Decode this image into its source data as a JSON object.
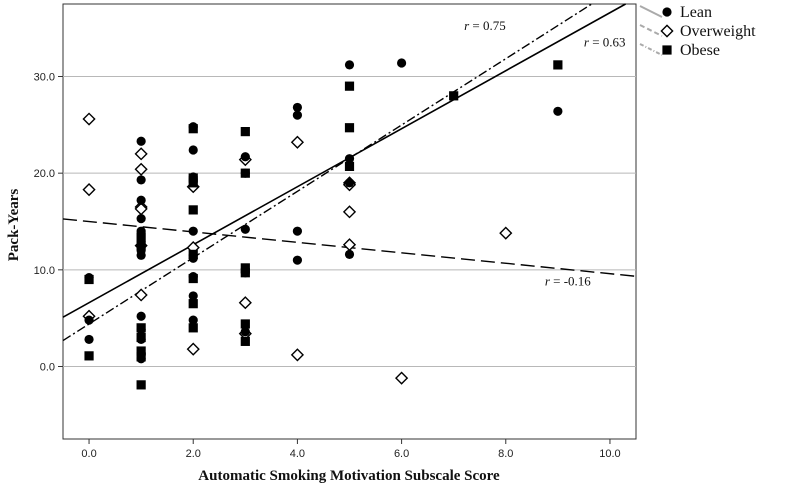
{
  "chart_data": {
    "type": "scatter",
    "xlabel": "Automatic Smoking Motivation Subscale Score",
    "ylabel": "Pack-Years",
    "xlim": [
      -0.5,
      10.5
    ],
    "ylim": [
      -7.5,
      37.5
    ],
    "x_ticks": [
      0,
      2,
      4,
      6,
      8,
      10
    ],
    "x_tick_labels": [
      "0.0",
      "2.0",
      "4.0",
      "6.0",
      "8.0",
      "10.0"
    ],
    "y_ticks": [
      0,
      10,
      20,
      30
    ],
    "y_tick_labels": [
      "0.0",
      "10.0",
      "20.0",
      "30.0"
    ],
    "grid": "horizontal",
    "legend_position": "top-right-outside",
    "series": [
      {
        "name": "Lean",
        "marker": "circle",
        "color": "#000000",
        "points": [
          [
            0,
            9.2
          ],
          [
            0,
            4.8
          ],
          [
            0,
            2.8
          ],
          [
            1,
            23.3
          ],
          [
            1,
            19.3
          ],
          [
            1,
            17.2
          ],
          [
            1,
            15.3
          ],
          [
            1,
            14.0
          ],
          [
            1,
            12.0
          ],
          [
            1,
            11.5
          ],
          [
            1,
            5.2
          ],
          [
            1,
            3.8
          ],
          [
            1,
            2.8
          ],
          [
            1,
            1.3
          ],
          [
            1,
            0.8
          ],
          [
            2,
            24.8
          ],
          [
            2,
            22.4
          ],
          [
            2,
            19.6
          ],
          [
            2,
            14.0
          ],
          [
            2,
            11.5
          ],
          [
            2,
            11.2
          ],
          [
            2,
            9.3
          ],
          [
            2,
            7.3
          ],
          [
            2,
            4.8
          ],
          [
            3,
            21.7
          ],
          [
            3,
            20.0
          ],
          [
            3,
            14.2
          ],
          [
            3,
            9.7
          ],
          [
            3,
            3.6
          ],
          [
            4,
            26.8
          ],
          [
            4,
            26.0
          ],
          [
            4,
            14.0
          ],
          [
            4,
            11.0
          ],
          [
            5,
            31.2
          ],
          [
            5,
            21.5
          ],
          [
            5,
            19.0
          ],
          [
            5,
            11.6
          ],
          [
            6,
            31.4
          ],
          [
            9,
            26.4
          ]
        ]
      },
      {
        "name": "Overweight",
        "marker": "diamond-open",
        "color": "#000000",
        "points": [
          [
            0,
            25.6
          ],
          [
            0,
            18.3
          ],
          [
            0,
            5.2
          ],
          [
            1,
            22.0
          ],
          [
            1,
            20.4
          ],
          [
            1,
            16.5
          ],
          [
            1,
            16.3
          ],
          [
            1,
            12.5
          ],
          [
            1,
            7.4
          ],
          [
            2,
            18.6
          ],
          [
            2,
            12.3
          ],
          [
            2,
            1.8
          ],
          [
            3,
            21.4
          ],
          [
            3,
            6.6
          ],
          [
            3,
            3.4
          ],
          [
            4,
            23.2
          ],
          [
            4,
            1.2
          ],
          [
            5,
            19.0
          ],
          [
            5,
            18.8
          ],
          [
            5,
            16.0
          ],
          [
            5,
            12.6
          ],
          [
            6,
            -1.2
          ],
          [
            8,
            13.8
          ]
        ]
      },
      {
        "name": "Obese",
        "marker": "square",
        "color": "#000000",
        "points": [
          [
            0,
            9.0
          ],
          [
            0,
            1.1
          ],
          [
            1,
            13.4
          ],
          [
            1,
            12.5
          ],
          [
            1,
            4.0
          ],
          [
            1,
            3.0
          ],
          [
            1,
            1.6
          ],
          [
            1,
            1.0
          ],
          [
            1,
            -1.9
          ],
          [
            2,
            24.6
          ],
          [
            2,
            19.5
          ],
          [
            2,
            19.0
          ],
          [
            2,
            16.2
          ],
          [
            2,
            11.6
          ],
          [
            2,
            9.1
          ],
          [
            2,
            6.5
          ],
          [
            2,
            4.0
          ],
          [
            3,
            24.3
          ],
          [
            3,
            20.0
          ],
          [
            3,
            10.2
          ],
          [
            3,
            9.7
          ],
          [
            3,
            4.4
          ],
          [
            3,
            2.6
          ],
          [
            5,
            29.0
          ],
          [
            5,
            24.7
          ],
          [
            5,
            20.7
          ],
          [
            7,
            28.0
          ],
          [
            9,
            31.2
          ]
        ]
      }
    ],
    "fit_lines": [
      {
        "series": "Lean",
        "style": "solid",
        "intercept": 6.6,
        "slope": 3.0,
        "r_label": "r",
        "r_value": "= 0.63"
      },
      {
        "series": "Overweight",
        "style": "dashed",
        "intercept": 15.0,
        "slope": -0.54,
        "r_label": "r",
        "r_value": "= -0.16"
      },
      {
        "series": "Obese",
        "style": "dashdot",
        "intercept": 4.4,
        "slope": 3.43,
        "r_label": "r",
        "r_value": "= 0.75"
      }
    ]
  }
}
